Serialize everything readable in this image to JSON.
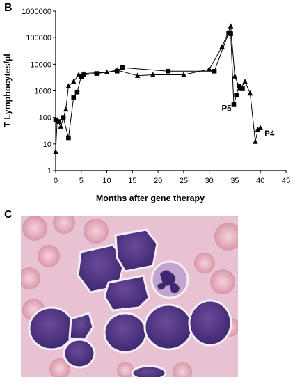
{
  "panel_b_label": "B",
  "panel_c_label": "C",
  "chart_data": {
    "type": "line",
    "title": "",
    "xlabel": "Months after gene therapy",
    "ylabel": "T Lymphocytes/µl",
    "yscale": "log",
    "xlim": [
      0,
      45
    ],
    "ylim": [
      1,
      1000000
    ],
    "x_ticks": [
      0,
      5,
      10,
      15,
      20,
      25,
      30,
      35,
      40,
      45
    ],
    "x_tick_labels": [
      "0",
      "5",
      "10",
      "15",
      "20",
      "25",
      "30",
      "35",
      "40",
      "45"
    ],
    "y_ticks": [
      1,
      10,
      100,
      1000,
      10000,
      100000,
      1000000
    ],
    "y_tick_labels": [
      "1",
      "10",
      "100",
      "1000",
      "10000",
      "100000",
      "1000000"
    ],
    "grid": false,
    "legend": "none",
    "series": [
      {
        "name": "P5",
        "marker": "square",
        "color": "#000000",
        "x": [
          0,
          0.5,
          1.5,
          2.5,
          3.5,
          4.2,
          5,
          5.5,
          8,
          12,
          13,
          22,
          31,
          33.8,
          34.2,
          34.8,
          35.3,
          35.8,
          36.5
        ],
        "y": [
          80,
          70,
          100,
          17,
          550,
          900,
          3500,
          4000,
          4500,
          5500,
          7500,
          5500,
          5500,
          150000,
          140000,
          300,
          700,
          1500,
          1200
        ]
      },
      {
        "name": "P4",
        "marker": "triangle",
        "color": "#000000",
        "x": [
          0,
          0.3,
          1,
          2,
          2.5,
          3.5,
          4.5,
          5.5,
          10,
          12,
          16,
          19,
          25,
          30,
          32.5,
          34.2,
          35,
          36,
          37,
          38,
          39,
          39.5,
          40
        ],
        "y": [
          5,
          80,
          45,
          200,
          1500,
          2200,
          4000,
          4500,
          5000,
          6000,
          3700,
          4000,
          4000,
          6500,
          45000,
          270000,
          3500,
          1200,
          2200,
          800,
          12,
          35,
          40
        ]
      }
    ]
  }
}
